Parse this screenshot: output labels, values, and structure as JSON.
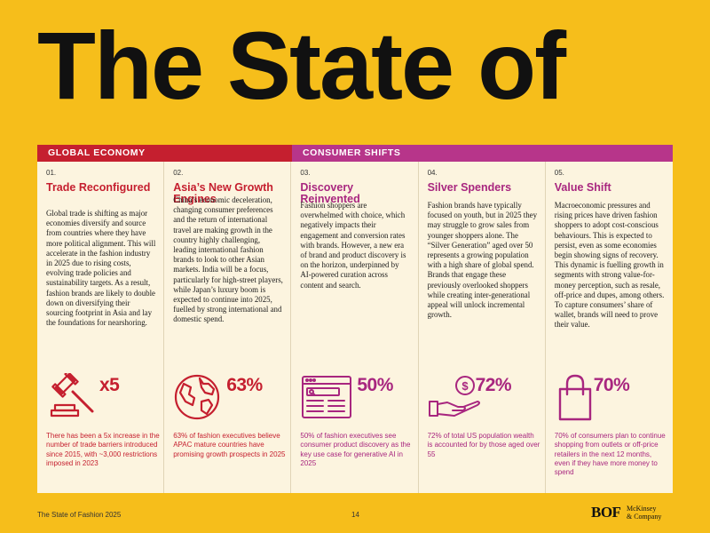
{
  "page": {
    "title": "The State of",
    "footer_title": "The State of Fashion 2025",
    "page_number": "14",
    "logo_bof": "BOF",
    "logo_mckinsey_line1": "McKinsey",
    "logo_mckinsey_line2": "& Company"
  },
  "sections": {
    "global": "GLOBAL ECONOMY",
    "consumer": "CONSUMER SHIFTS"
  },
  "colors": {
    "background": "#F6BE1B",
    "global_red": "#C51F2F",
    "consumer_pink": "#B7358A",
    "panel": "#FCF4DF"
  },
  "columns": [
    {
      "num": "01.",
      "title": "Trade Reconfigured",
      "body": "Global trade is shifting as major economies diversify and source from countries where they have more political alignment. This will accelerate in the fashion industry in 2025 due to rising costs, evolving trade policies and sustainability targets. As a result, fashion brands are likely to double down on diversifying their sourcing footprint in Asia and lay the foundations for nearshoring.",
      "stat": "x5",
      "icon": "gavel-icon",
      "stat_text": "There has been a 5x increase in the number of trade barriers introduced since 2015, with ~3,000 restrictions imposed in 2023"
    },
    {
      "num": "02.",
      "title": "Asia’s New Growth Engines",
      "body": "China’s economic deceleration, changing consumer preferences and the return of international travel are making growth in the country highly challenging, leading international fashion brands to look to other Asian markets. India will be a focus, particularly for high-street players, while Japan’s luxury boom is expected to continue into 2025, fuelled by strong international and domestic spend.",
      "stat": "63%",
      "icon": "globe-icon",
      "stat_text": "63% of fashion executives believe APAC mature countries have promising growth prospects in 2025"
    },
    {
      "num": "03.",
      "title": "Discovery Reinvented",
      "body": "Fashion shoppers are overwhelmed with choice, which negatively impacts their engagement and conversion rates with brands. However, a new era of brand and product discovery is on the horizon, underpinned by AI-powered curation across content and search.",
      "stat": "50%",
      "icon": "browser-search-icon",
      "stat_text": "50% of fashion executives see consumer product discovery as the key use case for generative AI in 2025"
    },
    {
      "num": "04.",
      "title": "Silver Spenders",
      "body": "Fashion brands have typically focused on youth, but in 2025 they may struggle to grow sales from younger shoppers alone. The “Silver Generation” aged over 50 represents a growing population with a high share of global spend. Brands that engage these previously overlooked shoppers while creating inter-generational appeal will unlock incremental growth.",
      "stat": "72%",
      "icon": "hand-coin-icon",
      "stat_text": "72% of total US population wealth is accounted for by those aged over 55"
    },
    {
      "num": "05.",
      "title": "Value Shift",
      "body": "Macroeconomic pressures and rising prices have driven fashion shoppers to adopt cost-conscious behaviours. This is expected to persist, even as some economies begin showing signs of recovery. This dynamic is fuelling growth in segments with strong value-for-money perception, such as resale, off-price and dupes, among others. To capture consumers’ share of wallet, brands will need to prove their value.",
      "stat": "70%",
      "icon": "shopping-bag-icon",
      "stat_text": "70% of consumers plan to continue shopping from outlets or off-price retailers in the next 12 months, even if they have more money to spend"
    }
  ]
}
